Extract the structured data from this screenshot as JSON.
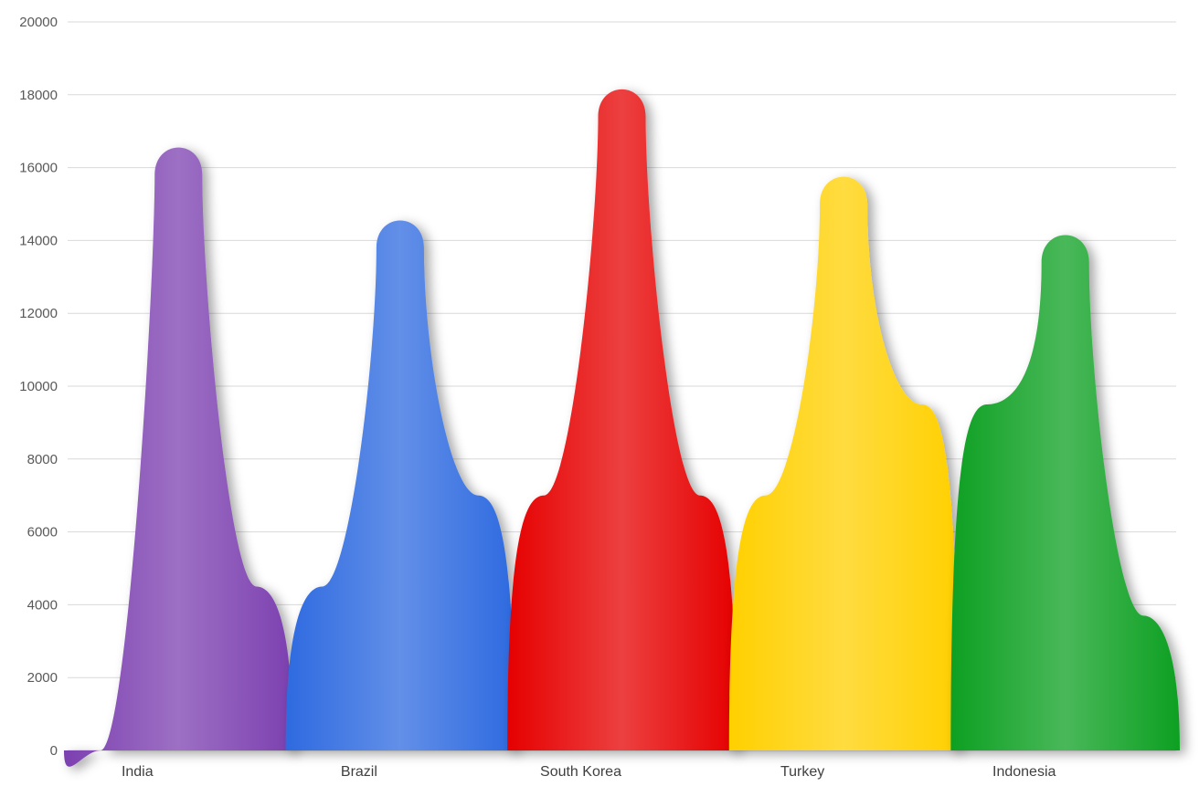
{
  "chart_data": {
    "type": "area",
    "categories": [
      "India",
      "Brazil",
      "South Korea",
      "Turkey",
      "Indonesia"
    ],
    "values": [
      16800,
      14800,
      18400,
      16000,
      14400
    ],
    "ylim": [
      0,
      20000
    ],
    "yticks": [
      0,
      2000,
      4000,
      6000,
      8000,
      10000,
      12000,
      14000,
      16000,
      18000,
      20000
    ],
    "colors": [
      "#7b3fb0",
      "#2e6be0",
      "#e60000",
      "#ffd000",
      "#0aa020"
    ],
    "grid": true,
    "legend": "none"
  }
}
